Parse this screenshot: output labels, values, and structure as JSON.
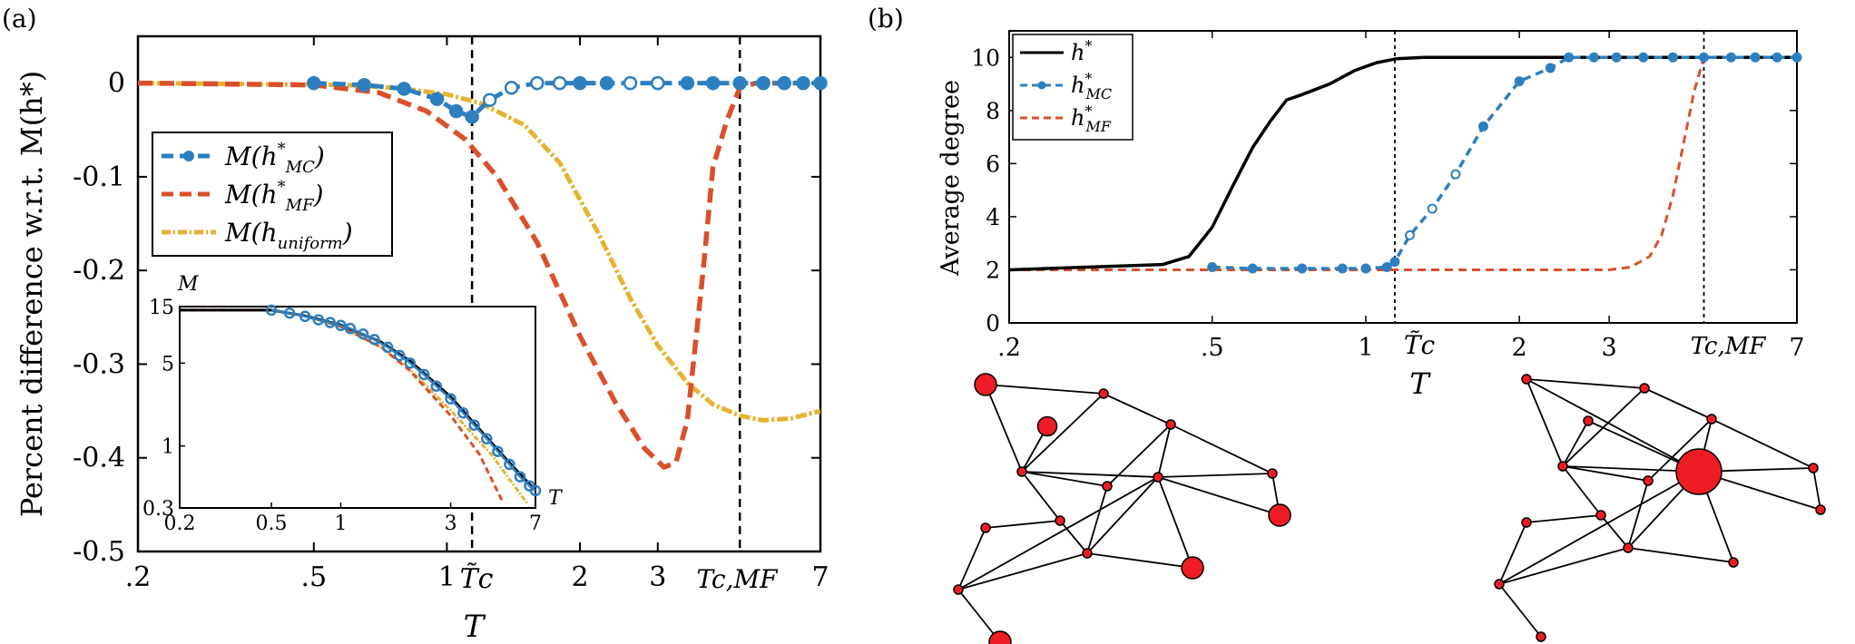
{
  "panel_a": {
    "label": "(a)",
    "ylabel": "Percent difference w.r.t. M(h*)",
    "xlabel": "T",
    "marker_labels": {
      "tc": "T̃c",
      "tcmf": "Tc,MF"
    }
  },
  "panel_b": {
    "label": "(b)",
    "ylabel": "Average degree",
    "xlabel": "T",
    "marker_labels": {
      "tc": "T̃c",
      "tcmf": "Tc,MF"
    }
  },
  "inset": {
    "ylabel": "M",
    "xlabel": "T"
  },
  "colors": {
    "mc": "#2e7fc0",
    "mf": "#d9502a",
    "uniform": "#e6b230",
    "hstar": "#000000",
    "node": "#ee1c24"
  },
  "chart_data": [
    {
      "type": "line",
      "title": "(a)",
      "xlabel": "T",
      "ylabel": "Percent difference w.r.t. M(h*)",
      "xscale": "log",
      "xlim": [
        0.2,
        7
      ],
      "ylim": [
        -0.5,
        0.05
      ],
      "xticks": [
        0.2,
        0.5,
        1,
        2,
        3,
        7
      ],
      "xtick_labels": [
        ".2",
        ".5",
        "1",
        "2",
        "3",
        "7"
      ],
      "yticks": [
        0,
        -0.1,
        -0.2,
        -0.3,
        -0.4,
        -0.5
      ],
      "ytick_labels": [
        "0",
        "-0.1",
        "-0.2",
        "-0.3",
        "-0.4",
        "-0.5"
      ],
      "vlines": [
        1.14,
        4.6
      ],
      "legend": "middle-left",
      "series": [
        {
          "name": "M(h*MC)",
          "x": [
            0.5,
            0.65,
            0.8,
            0.95,
            1.05,
            1.14,
            1.25,
            1.4,
            1.6,
            1.8,
            2.0,
            2.3,
            2.6,
            3.0,
            3.5,
            4.0,
            4.6,
            5.2,
            5.8,
            6.4,
            7.0
          ],
          "y": [
            0,
            -0.002,
            -0.006,
            -0.017,
            -0.03,
            -0.036,
            -0.018,
            -0.005,
            0,
            0,
            0,
            0,
            0,
            0,
            0,
            0,
            0,
            0,
            0,
            0,
            0
          ]
        },
        {
          "name": "M(h*MF)",
          "x": [
            0.2,
            0.5,
            0.7,
            0.9,
            1.1,
            1.3,
            1.6,
            2.0,
            2.4,
            2.8,
            3.1,
            3.3,
            3.5,
            3.8,
            4.0,
            4.3,
            4.6,
            5.0,
            6.0,
            7.0
          ],
          "y": [
            0,
            -0.002,
            -0.01,
            -0.03,
            -0.06,
            -0.1,
            -0.17,
            -0.27,
            -0.34,
            -0.39,
            -0.41,
            -0.405,
            -0.36,
            -0.2,
            -0.09,
            -0.04,
            -0.005,
            0,
            0,
            0
          ]
        },
        {
          "name": "M(huniform)",
          "x": [
            0.2,
            0.6,
            0.8,
            1.0,
            1.2,
            1.5,
            1.8,
            2.2,
            2.6,
            3.0,
            3.5,
            4.0,
            4.6,
            5.2,
            6.0,
            7.0
          ],
          "y": [
            0,
            -0.002,
            -0.006,
            -0.012,
            -0.022,
            -0.045,
            -0.085,
            -0.16,
            -0.23,
            -0.28,
            -0.32,
            -0.343,
            -0.355,
            -0.36,
            -0.358,
            -0.35
          ]
        }
      ]
    },
    {
      "type": "line",
      "title": "(b)",
      "xlabel": "T",
      "ylabel": "Average degree",
      "xscale": "log",
      "xlim": [
        0.2,
        7
      ],
      "ylim": [
        0,
        11
      ],
      "xticks": [
        0.2,
        0.5,
        1,
        2,
        3,
        7
      ],
      "xtick_labels": [
        ".2",
        ".5",
        "1",
        "2",
        "3",
        "7"
      ],
      "yticks": [
        0,
        2,
        4,
        6,
        8,
        10
      ],
      "ytick_labels": [
        "0",
        "2",
        "4",
        "6",
        "8",
        "10"
      ],
      "vlines": [
        1.14,
        4.6
      ],
      "legend": "top-left",
      "series": [
        {
          "name": "h*",
          "x": [
            0.2,
            0.4,
            0.45,
            0.5,
            0.55,
            0.6,
            0.65,
            0.7,
            0.75,
            0.85,
            0.95,
            1.05,
            1.15,
            1.3,
            7.0
          ],
          "y": [
            2,
            2.2,
            2.5,
            3.6,
            5.2,
            6.6,
            7.6,
            8.4,
            8.6,
            9.0,
            9.5,
            9.8,
            9.95,
            10,
            10
          ]
        },
        {
          "name": "h*MC",
          "x": [
            0.5,
            0.6,
            0.75,
            0.9,
            1.0,
            1.1,
            1.14,
            1.22,
            1.35,
            1.5,
            1.7,
            2.0,
            2.3,
            2.5,
            2.8,
            3.1,
            3.5,
            4.0,
            4.6,
            5.2,
            5.8,
            6.4,
            7.0
          ],
          "y": [
            2.1,
            2.05,
            2.05,
            2.05,
            2.05,
            2.1,
            2.3,
            3.3,
            4.3,
            5.6,
            7.4,
            9.1,
            9.6,
            10,
            10,
            10,
            10,
            10,
            10,
            10,
            10,
            10,
            10
          ]
        },
        {
          "name": "h*MF",
          "x": [
            0.2,
            3.0,
            3.3,
            3.6,
            3.8,
            4.0,
            4.2,
            4.4,
            4.6,
            5.0,
            7.0
          ],
          "y": [
            2,
            2,
            2.1,
            2.5,
            3.3,
            4.8,
            6.8,
            8.7,
            10,
            10,
            10
          ]
        }
      ]
    },
    {
      "type": "line",
      "title": "inset",
      "xlabel": "T",
      "ylabel": "M",
      "xscale": "log",
      "yscale": "log",
      "xlim": [
        0.2,
        7
      ],
      "ylim": [
        0.3,
        15
      ],
      "xticks": [
        0.2,
        0.5,
        1,
        3,
        7
      ],
      "xtick_labels": [
        "0.2",
        "0.5",
        "1",
        "3",
        "7"
      ],
      "yticks": [
        0.3,
        1,
        5,
        15
      ],
      "ytick_labels": [
        "0.3",
        "1",
        "5",
        "15"
      ],
      "series": [
        {
          "name": "M(h*)",
          "x": [
            0.2,
            0.5,
            0.7,
            1.0,
            1.5,
            2.0,
            3.0,
            5.0,
            7.0
          ],
          "y": [
            14,
            14,
            12.5,
            10.5,
            7.5,
            5.2,
            2.6,
            0.85,
            0.42
          ]
        },
        {
          "name": "M(h*MC)",
          "x": [
            0.5,
            0.6,
            0.7,
            0.8,
            0.9,
            1.0,
            1.1,
            1.25,
            1.4,
            1.6,
            1.8,
            2.0,
            2.3,
            2.6,
            3.0,
            3.4,
            3.8,
            4.3,
            4.8,
            5.4,
            6.0,
            6.6,
            7.0
          ],
          "y": [
            14,
            13.2,
            12.4,
            11.6,
            11.0,
            10.4,
            9.8,
            8.8,
            7.9,
            6.8,
            5.8,
            5.0,
            4.0,
            3.2,
            2.5,
            1.9,
            1.5,
            1.15,
            0.9,
            0.7,
            0.55,
            0.46,
            0.42
          ]
        },
        {
          "name": "M(h*MF)",
          "x": [
            0.2,
            0.5,
            0.7,
            1.0,
            1.5,
            2.0,
            3.0,
            4.0,
            5.0
          ],
          "y": [
            14,
            14,
            12.5,
            10.2,
            6.8,
            4.3,
            1.8,
            0.85,
            0.35
          ]
        },
        {
          "name": "M(huniform)",
          "x": [
            0.2,
            0.5,
            0.7,
            1.0,
            1.5,
            2.0,
            3.0,
            4.5,
            6.5
          ],
          "y": [
            14,
            14,
            12.5,
            10.2,
            6.8,
            4.4,
            2.0,
            0.85,
            0.32
          ]
        }
      ]
    }
  ],
  "networks": {
    "left": {
      "nodes": [
        {
          "id": 1,
          "degree": 3,
          "size": 2.4
        },
        {
          "id": 2,
          "degree": 2,
          "size": 1
        },
        {
          "id": 3,
          "degree": 2,
          "size": 2.1
        },
        {
          "id": 4,
          "degree": 4,
          "size": 1
        },
        {
          "id": 5,
          "degree": 5,
          "size": 1
        },
        {
          "id": 6,
          "degree": 3,
          "size": 1
        },
        {
          "id": 7,
          "degree": 2,
          "size": 1
        },
        {
          "id": 8,
          "degree": 3,
          "size": 1
        },
        {
          "id": 9,
          "degree": 9,
          "size": 1
        },
        {
          "id": 10,
          "degree": 3,
          "size": 1
        },
        {
          "id": 11,
          "degree": 4,
          "size": 1
        },
        {
          "id": 12,
          "degree": 2,
          "size": 2.4
        },
        {
          "id": 13,
          "degree": 2,
          "size": 2.4
        },
        {
          "id": 14,
          "degree": 3,
          "size": 1
        },
        {
          "id": 15,
          "degree": 1,
          "size": 2.4
        }
      ],
      "edges": [
        [
          1,
          2
        ],
        [
          1,
          4
        ],
        [
          2,
          5
        ],
        [
          3,
          4
        ],
        [
          2,
          4
        ],
        [
          4,
          6
        ],
        [
          4,
          9
        ],
        [
          4,
          8
        ],
        [
          5,
          9
        ],
        [
          5,
          10
        ],
        [
          5,
          6
        ],
        [
          6,
          11
        ],
        [
          8,
          11
        ],
        [
          7,
          8
        ],
        [
          7,
          14
        ],
        [
          9,
          11
        ],
        [
          9,
          12
        ],
        [
          9,
          13
        ],
        [
          9,
          10
        ],
        [
          9,
          14
        ],
        [
          10,
          12
        ],
        [
          11,
          14
        ],
        [
          11,
          13
        ],
        [
          14,
          15
        ]
      ]
    },
    "right": {
      "nodes": [
        {
          "id": 1,
          "degree": 3,
          "size": 1
        },
        {
          "id": 2,
          "degree": 2,
          "size": 1
        },
        {
          "id": 3,
          "degree": 2,
          "size": 1
        },
        {
          "id": 4,
          "degree": 5,
          "size": 1
        },
        {
          "id": 5,
          "degree": 5,
          "size": 1
        },
        {
          "id": 6,
          "degree": 3,
          "size": 1
        },
        {
          "id": 7,
          "degree": 2,
          "size": 1
        },
        {
          "id": 8,
          "degree": 3,
          "size": 1
        },
        {
          "id": 9,
          "degree": 11,
          "size": 5
        },
        {
          "id": 10,
          "degree": 3,
          "size": 1
        },
        {
          "id": 11,
          "degree": 4,
          "size": 1
        },
        {
          "id": 12,
          "degree": 2,
          "size": 1
        },
        {
          "id": 13,
          "degree": 2,
          "size": 1
        },
        {
          "id": 14,
          "degree": 3,
          "size": 1
        },
        {
          "id": 15,
          "degree": 1,
          "size": 1
        }
      ],
      "edges": [
        [
          1,
          2
        ],
        [
          1,
          4
        ],
        [
          2,
          5
        ],
        [
          3,
          4
        ],
        [
          2,
          4
        ],
        [
          4,
          6
        ],
        [
          4,
          9
        ],
        [
          4,
          8
        ],
        [
          5,
          9
        ],
        [
          5,
          10
        ],
        [
          5,
          6
        ],
        [
          6,
          11
        ],
        [
          8,
          11
        ],
        [
          7,
          8
        ],
        [
          7,
          14
        ],
        [
          9,
          11
        ],
        [
          9,
          12
        ],
        [
          9,
          13
        ],
        [
          9,
          10
        ],
        [
          9,
          14
        ],
        [
          10,
          12
        ],
        [
          11,
          14
        ],
        [
          11,
          13
        ],
        [
          14,
          15
        ],
        [
          1,
          9
        ],
        [
          3,
          9
        ]
      ]
    }
  }
}
